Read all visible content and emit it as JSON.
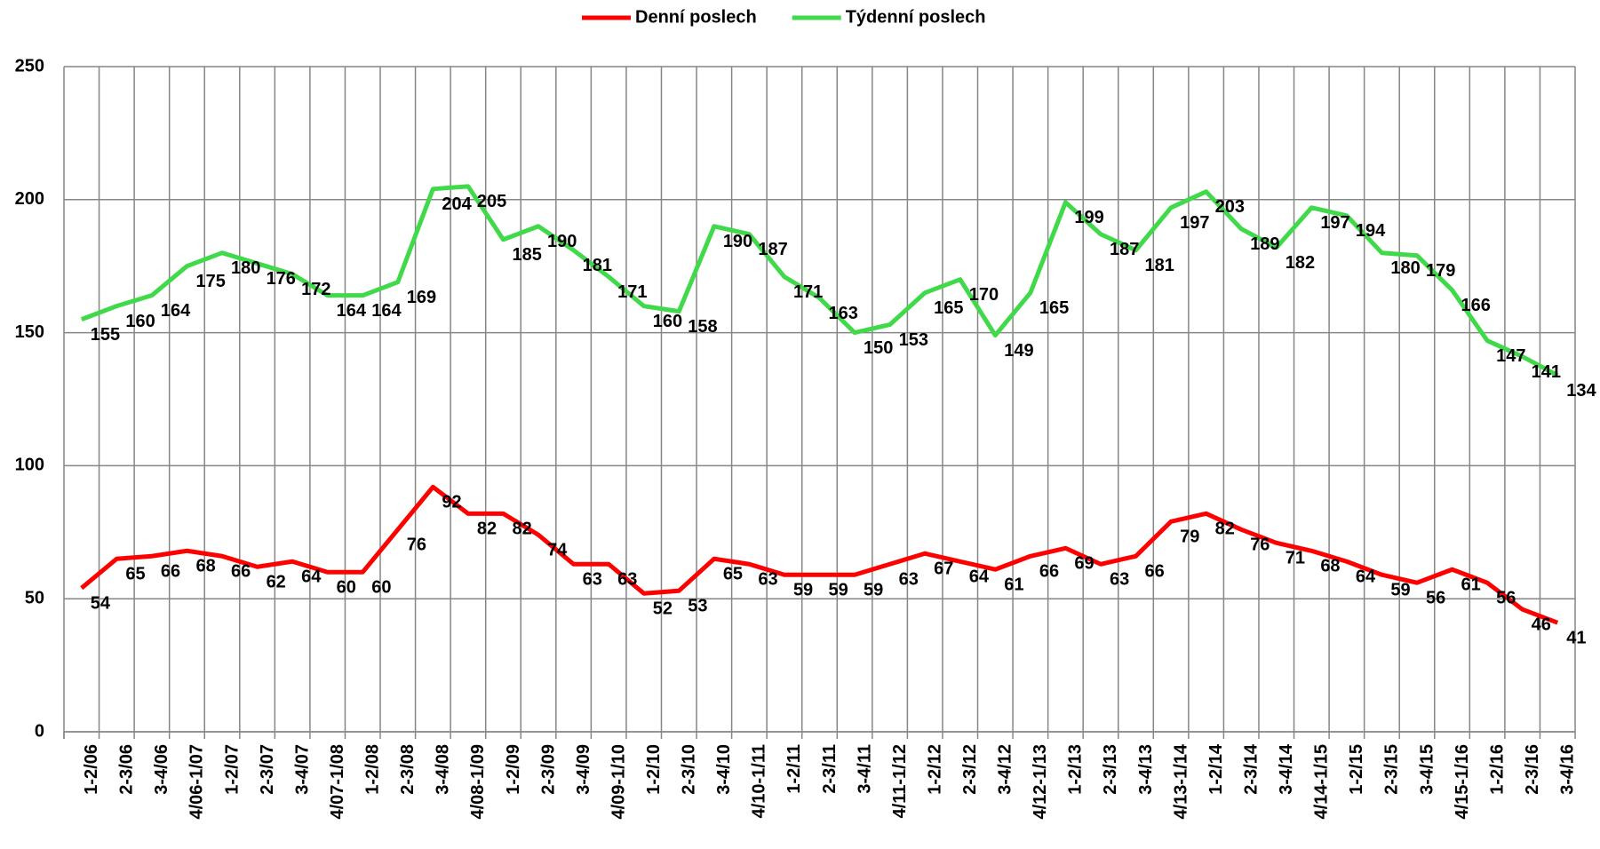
{
  "chart_data": {
    "type": "line",
    "categories": [
      "1-2/06",
      "2-3/06",
      "3-4/06",
      "4/06-1/07",
      "1-2/07",
      "2-3/07",
      "3-4/07",
      "4/07-1/08",
      "1-2/08",
      "2-3/08",
      "3-4/08",
      "4/08-1/09",
      "1-2/09",
      "2-3/09",
      "3-4/09",
      "4/09-1/10",
      "1-2/10",
      "2-3/10",
      "3-4/10",
      "4/10-1/11",
      "1-2/11",
      "2-3/11",
      "3-4/11",
      "4/11-1/12",
      "1-2/12",
      "2-3/12",
      "3-4/12",
      "4/12-1/13",
      "1-2/13",
      "2-3/13",
      "3-4/13",
      "4/13-1/14",
      "1-2/14",
      "2-3/14",
      "3-4/14",
      "4/14-1/15",
      "1-2/15",
      "2-3/15",
      "3-4/15",
      "4/15-1/16",
      "1-2/16",
      "2-3/16",
      "3-4/16"
    ],
    "series": [
      {
        "name": "Denní poslech",
        "color": "#ff0000",
        "values": [
          54,
          65,
          66,
          68,
          66,
          62,
          64,
          60,
          60,
          76,
          92,
          82,
          82,
          74,
          63,
          63,
          52,
          53,
          65,
          63,
          59,
          59,
          59,
          63,
          67,
          64,
          61,
          66,
          69,
          63,
          66,
          79,
          82,
          76,
          71,
          68,
          64,
          59,
          56,
          61,
          56,
          46,
          41
        ]
      },
      {
        "name": "Týdenní poslech",
        "color": "#40d94a",
        "values": [
          155,
          160,
          164,
          175,
          180,
          176,
          172,
          164,
          164,
          169,
          204,
          205,
          185,
          190,
          181,
          171,
          160,
          158,
          190,
          187,
          171,
          163,
          150,
          153,
          165,
          170,
          149,
          165,
          199,
          187,
          181,
          197,
          203,
          189,
          182,
          197,
          194,
          180,
          179,
          166,
          147,
          141,
          134
        ]
      }
    ],
    "ylim": [
      0,
      250
    ],
    "yticks": [
      0,
      50,
      100,
      150,
      200,
      250
    ],
    "grid": true,
    "legend": "top"
  }
}
